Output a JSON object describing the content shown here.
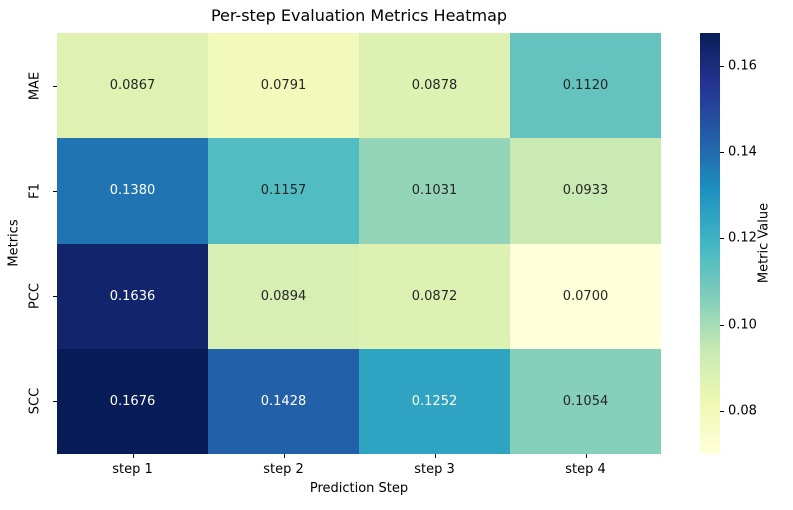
{
  "title": "Per-step Evaluation Metrics Heatmap",
  "chart_data": {
    "type": "heatmap",
    "title": "Per-step Evaluation Metrics Heatmap",
    "xlabel": "Prediction Step",
    "ylabel": "Metrics",
    "x_categories": [
      "step 1",
      "step 2",
      "step 3",
      "step 4"
    ],
    "y_categories": [
      "MAE",
      "F1",
      "PCC",
      "SCC"
    ],
    "values": [
      [
        0.0867,
        0.0791,
        0.0878,
        0.112
      ],
      [
        0.138,
        0.1157,
        0.1031,
        0.0933
      ],
      [
        0.1636,
        0.0894,
        0.0872,
        0.07
      ],
      [
        0.1676,
        0.1428,
        0.1252,
        0.1054
      ]
    ],
    "annotation_decimals": 4,
    "colormap": "YlGnBu",
    "colormap_stops": [
      "#ffffd9",
      "#edf8b1",
      "#c7e9b4",
      "#7fcdbb",
      "#41b6c4",
      "#1d91c0",
      "#225ea8",
      "#253494",
      "#081d58"
    ],
    "vmin": 0.07,
    "vmax": 0.1676,
    "colorbar_label": "Metric Value",
    "colorbar_ticks": [
      "0.16",
      "0.14",
      "0.12",
      "0.10",
      "0.08"
    ],
    "grid": false,
    "legend_position": "right-colorbar",
    "annotation_dark_text_color": "#262626",
    "annotation_light_text_color": "#ffffff"
  }
}
